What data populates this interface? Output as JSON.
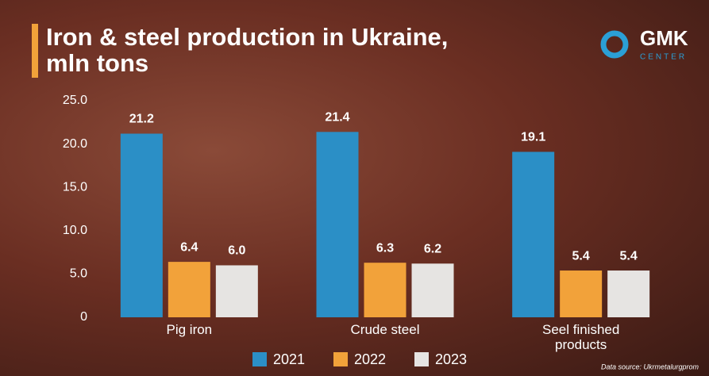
{
  "chart_data": {
    "type": "bar",
    "title": "Iron & steel production in Ukraine, mln tons",
    "logo": {
      "name": "GMK",
      "subname": "CENTER"
    },
    "source": "Data source: Ukrmetalurgprom",
    "categories": [
      "Pig iron",
      "Crude steel",
      "Seel finished products"
    ],
    "series": [
      {
        "name": "2021",
        "color": "#2b8fc6",
        "values": [
          21.2,
          21.4,
          19.1
        ]
      },
      {
        "name": "2022",
        "color": "#f2a23a",
        "values": [
          6.4,
          6.3,
          5.4
        ]
      },
      {
        "name": "2023",
        "color": "#e6e4e2",
        "values": [
          6.0,
          6.2,
          5.4
        ],
        "value_labels": [
          "6.0",
          "6.2",
          "5.4"
        ]
      }
    ],
    "ylim": [
      0,
      25
    ],
    "yticks": [
      0,
      {
        "value": 5,
        "label": "5.0"
      },
      {
        "value": 10,
        "label": "10.0"
      },
      {
        "value": 15,
        "label": "15.0"
      },
      {
        "value": 20,
        "label": "20.0"
      },
      {
        "value": 25,
        "label": "25.0"
      }
    ],
    "grid": false
  }
}
